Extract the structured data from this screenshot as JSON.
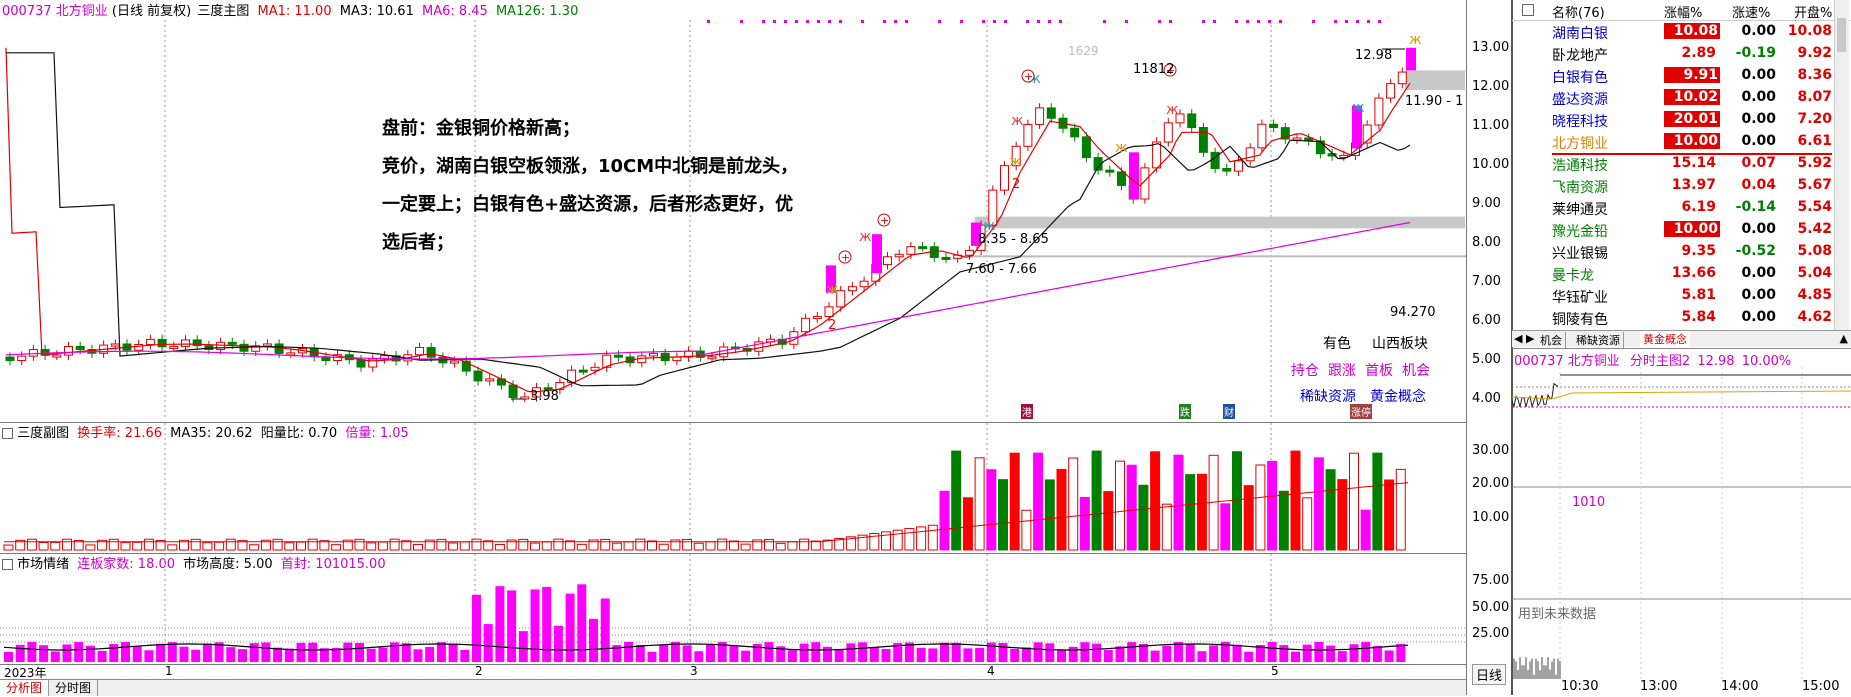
{
  "main_header": {
    "code_name": "000737 北方铜业",
    "mode": "(日线 前复权)",
    "panel": "三度主图",
    "ma1": "MA1: 11.00",
    "ma3": "MA3: 10.61",
    "ma6": "MA6: 8.45",
    "ma126": "MA126: 1.30"
  },
  "annotation_lines": [
    "盘前：金银铜价格新高；",
    "竞价，湖南白银空板领涨，10CM中北铜是前龙头，",
    "一定要上；白银有色+盛达资源，后者形态更好，优",
    "选后者；"
  ],
  "price_labels": {
    "low": "3.98",
    "peak1": "11812",
    "last": "12.98",
    "zone_top": "11.90 - 1",
    "zone1": "8.35 - 8.65",
    "zone2": "7.60 - 7.66",
    "misc1": "1629",
    "misc2": "94.270",
    "num2a": "2",
    "num2b": "2"
  },
  "price_axis": [
    "13.00",
    "12.00",
    "11.00",
    "10.00",
    "9.00",
    "8.00",
    "7.00",
    "6.00",
    "5.00",
    "4.00"
  ],
  "sector_tags": {
    "row1": [
      "有色",
      "山西板块"
    ],
    "row2": [
      "持仓",
      "跟涨",
      "首板",
      "机会"
    ],
    "row3": [
      "稀缺资源",
      "黄金概念"
    ]
  },
  "event_markers": [
    "港",
    "跌",
    "财",
    "涨停"
  ],
  "sub_header": {
    "panel": "三度副图",
    "turnover": "换手率: 21.66",
    "ma35": "MA35: 20.62",
    "ratio": "阳量比: 0.70",
    "times": "倍量: 1.05"
  },
  "sub_axis": [
    "30.00",
    "20.00",
    "10.00"
  ],
  "mood_header": {
    "panel": "市场情绪",
    "count": "连板家数: 18.00",
    "height": "市场高度: 5.00",
    "first": "首封: 101015.00"
  },
  "mood_axis": [
    "75.00",
    "50.00",
    "25.00"
  ],
  "date_axis": {
    "year": "2023年",
    "m1": "1",
    "m2": "2",
    "m3": "3",
    "m4": "4",
    "m5": "5",
    "period": "日线"
  },
  "bottom_tabs": [
    "分析图",
    "分时图"
  ],
  "sector_list": {
    "header": {
      "name": "名称(76)",
      "chg": "涨幅%",
      "speed": "涨速%",
      "open": "开盘%"
    },
    "rows": [
      {
        "name": "湖南白银",
        "chg": "10.08",
        "speed": "0.00",
        "open": "10.08",
        "color": "#0000cc",
        "hl": true
      },
      {
        "name": "卧龙地产",
        "chg": "2.89",
        "speed": "-0.19",
        "open": "9.92",
        "color": "#000000",
        "hl": false
      },
      {
        "name": "白银有色",
        "chg": "9.91",
        "speed": "0.00",
        "open": "8.36",
        "color": "#0000cc",
        "hl": true
      },
      {
        "name": "盛达资源",
        "chg": "10.02",
        "speed": "0.00",
        "open": "8.07",
        "color": "#0000cc",
        "hl": true
      },
      {
        "name": "晓程科技",
        "chg": "20.01",
        "speed": "0.00",
        "open": "7.20",
        "color": "#0000cc",
        "hl": true
      },
      {
        "name": "北方铜业",
        "chg": "10.00",
        "speed": "0.00",
        "open": "6.61",
        "color": "#e08000",
        "hl": true
      },
      {
        "name": "浩通科技",
        "chg": "15.14",
        "speed": "0.07",
        "open": "5.92",
        "color": "#008000",
        "hl": false
      },
      {
        "name": "飞南资源",
        "chg": "13.97",
        "speed": "0.04",
        "open": "5.67",
        "color": "#008000",
        "hl": false
      },
      {
        "name": "莱绅通灵",
        "chg": "6.19",
        "speed": "-0.14",
        "open": "5.54",
        "color": "#000000",
        "hl": false
      },
      {
        "name": "豫光金铅",
        "chg": "10.00",
        "speed": "0.00",
        "open": "5.42",
        "color": "#008000",
        "hl": true
      },
      {
        "name": "兴业银锡",
        "chg": "9.35",
        "speed": "-0.52",
        "open": "5.08",
        "color": "#000000",
        "hl": false
      },
      {
        "name": "曼卡龙",
        "chg": "13.66",
        "speed": "0.00",
        "open": "5.04",
        "color": "#008000",
        "hl": false
      },
      {
        "name": "华钰矿业",
        "chg": "5.81",
        "speed": "0.00",
        "open": "4.85",
        "color": "#000000",
        "hl": false
      },
      {
        "name": "铜陵有色",
        "chg": "5.84",
        "speed": "0.00",
        "open": "4.62",
        "color": "#000000",
        "hl": false
      }
    ]
  },
  "right_tabs": [
    "机会",
    "稀缺资源",
    "黄金概念"
  ],
  "intraday": {
    "header": "000737 北方铜业",
    "panel": "分时主图2",
    "price": "12.98",
    "pct": "10.00%",
    "vol_label": "1010",
    "note": "用到未来数据",
    "times": [
      "10:30",
      "13:00",
      "14:00",
      "15:00"
    ]
  }
}
